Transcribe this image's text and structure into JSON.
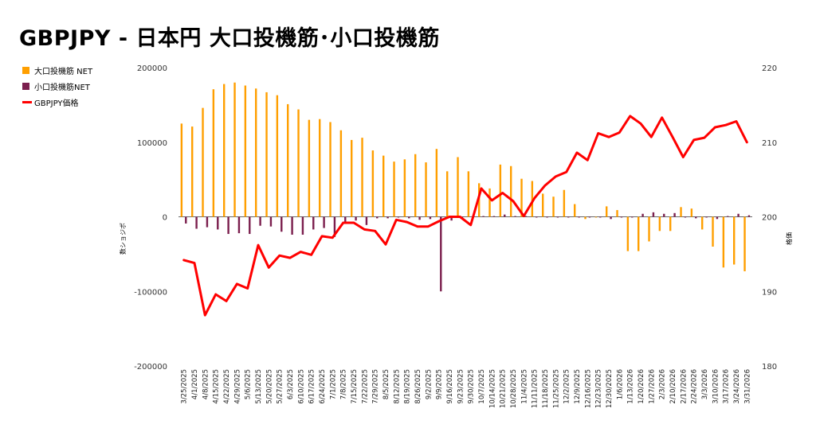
{
  "title": "GBPJPY - 日本円 大口投機筋･小口投機筋",
  "legend": {
    "items": [
      {
        "label": "大口投機筋  NET",
        "color": "#ff9f00",
        "kind": "bar"
      },
      {
        "label": "小口投機筋NET",
        "color": "#7b1f4e",
        "kind": "bar"
      },
      {
        "label": "GBPJPY価格",
        "color": "#ff0000",
        "kind": "line"
      }
    ]
  },
  "chart_data": {
    "type": "bar",
    "title": "GBPJPY - 日本円 大口投機筋･小口投機筋",
    "ylabel": "数ショジポ",
    "y2label": "格価",
    "ylim": [
      -200000,
      200000
    ],
    "y2lim": [
      180,
      220
    ],
    "yticks": [
      "200000",
      "100000",
      "0",
      "-100000",
      "-200000"
    ],
    "y2ticks": [
      "220",
      "210",
      "200",
      "190",
      "180"
    ],
    "grid": false,
    "legend_position": "left",
    "categories": [
      "3/25/2025",
      "4/1/2025",
      "4/8/2025",
      "4/15/2025",
      "4/22/2025",
      "4/29/2025",
      "5/6/2025",
      "5/13/2025",
      "5/20/2025",
      "5/27/2025",
      "6/3/2025",
      "6/10/2025",
      "6/17/2025",
      "6/24/2025",
      "7/1/2025",
      "7/8/2025",
      "7/15/2025",
      "7/22/2025",
      "7/29/2025",
      "8/5/2025",
      "8/12/2025",
      "8/19/2025",
      "8/26/2025",
      "9/2/2025",
      "9/9/2025",
      "9/16/2025",
      "9/23/2025",
      "9/30/2025",
      "10/7/2025",
      "10/14/2025",
      "10/21/2025",
      "10/28/2025",
      "11/4/2025",
      "11/11/2025",
      "11/18/2025",
      "11/25/2025",
      "12/2/2025",
      "12/9/2025",
      "12/16/2025",
      "12/23/2025",
      "12/30/2025",
      "1/6/2026",
      "1/13/2026",
      "1/20/2026",
      "1/27/2026",
      "2/3/2026",
      "2/10/2026",
      "2/17/2026",
      "2/24/2026",
      "3/3/2026",
      "3/10/2026",
      "3/17/2026",
      "3/24/2026",
      "3/31/2026"
    ],
    "series": [
      {
        "name": "大口投機筋  NET",
        "color": "#ff9f00",
        "axis": "left",
        "type": "bar",
        "values": [
          125000,
          121000,
          146000,
          171000,
          178000,
          180000,
          176000,
          172000,
          167000,
          163000,
          151000,
          144000,
          130000,
          131000,
          127000,
          116000,
          103000,
          106000,
          89000,
          82000,
          74000,
          77000,
          84000,
          73000,
          91000,
          61000,
          80000,
          61000,
          45000,
          38000,
          70000,
          68000,
          51000,
          48000,
          31000,
          27000,
          36000,
          17000,
          -3000,
          -1000,
          14000,
          9000,
          -46000,
          -46000,
          -33000,
          -19000,
          -19000,
          13000,
          11000,
          -17000,
          -40000,
          -68000,
          -64000,
          -73000
        ]
      },
      {
        "name": "小口投機筋NET",
        "color": "#7b1f4e",
        "axis": "left",
        "type": "bar",
        "values": [
          -9000,
          -16000,
          -14000,
          -17000,
          -23000,
          -22000,
          -23000,
          -12000,
          -13000,
          -20000,
          -24000,
          -24000,
          -17000,
          -15000,
          -27000,
          -8000,
          -5000,
          -11000,
          -2000,
          -2000,
          -1000,
          -2000,
          -4000,
          -3000,
          -100000,
          -5000,
          -2000,
          -2000,
          1000,
          1000,
          3000,
          1000,
          1000,
          -1000,
          -1000,
          -1000,
          -1000,
          -1000,
          -1000,
          -1000,
          -3000,
          -1000,
          -1000,
          4000,
          6000,
          4000,
          5000,
          -1000,
          -2000,
          -1000,
          -3000,
          1000,
          4000,
          2000
        ]
      },
      {
        "name": "GBPJPY価格",
        "color": "#ff0000",
        "axis": "right",
        "type": "line",
        "values": [
          194.2,
          193.8,
          186.8,
          189.6,
          188.7,
          191.0,
          190.4,
          196.2,
          193.2,
          194.8,
          194.5,
          195.3,
          194.9,
          197.4,
          197.2,
          199.2,
          199.2,
          198.3,
          198.1,
          196.3,
          199.6,
          199.3,
          198.7,
          198.7,
          199.4,
          200.0,
          200.0,
          198.9,
          203.8,
          202.2,
          203.2,
          202.1,
          200.1,
          202.5,
          204.2,
          205.4,
          206.0,
          208.6,
          207.6,
          211.2,
          210.7,
          211.3,
          213.5,
          212.5,
          210.7,
          213.3,
          210.7,
          208.0,
          210.3,
          210.6,
          212.0,
          212.3,
          212.8,
          210.0
        ]
      }
    ]
  }
}
